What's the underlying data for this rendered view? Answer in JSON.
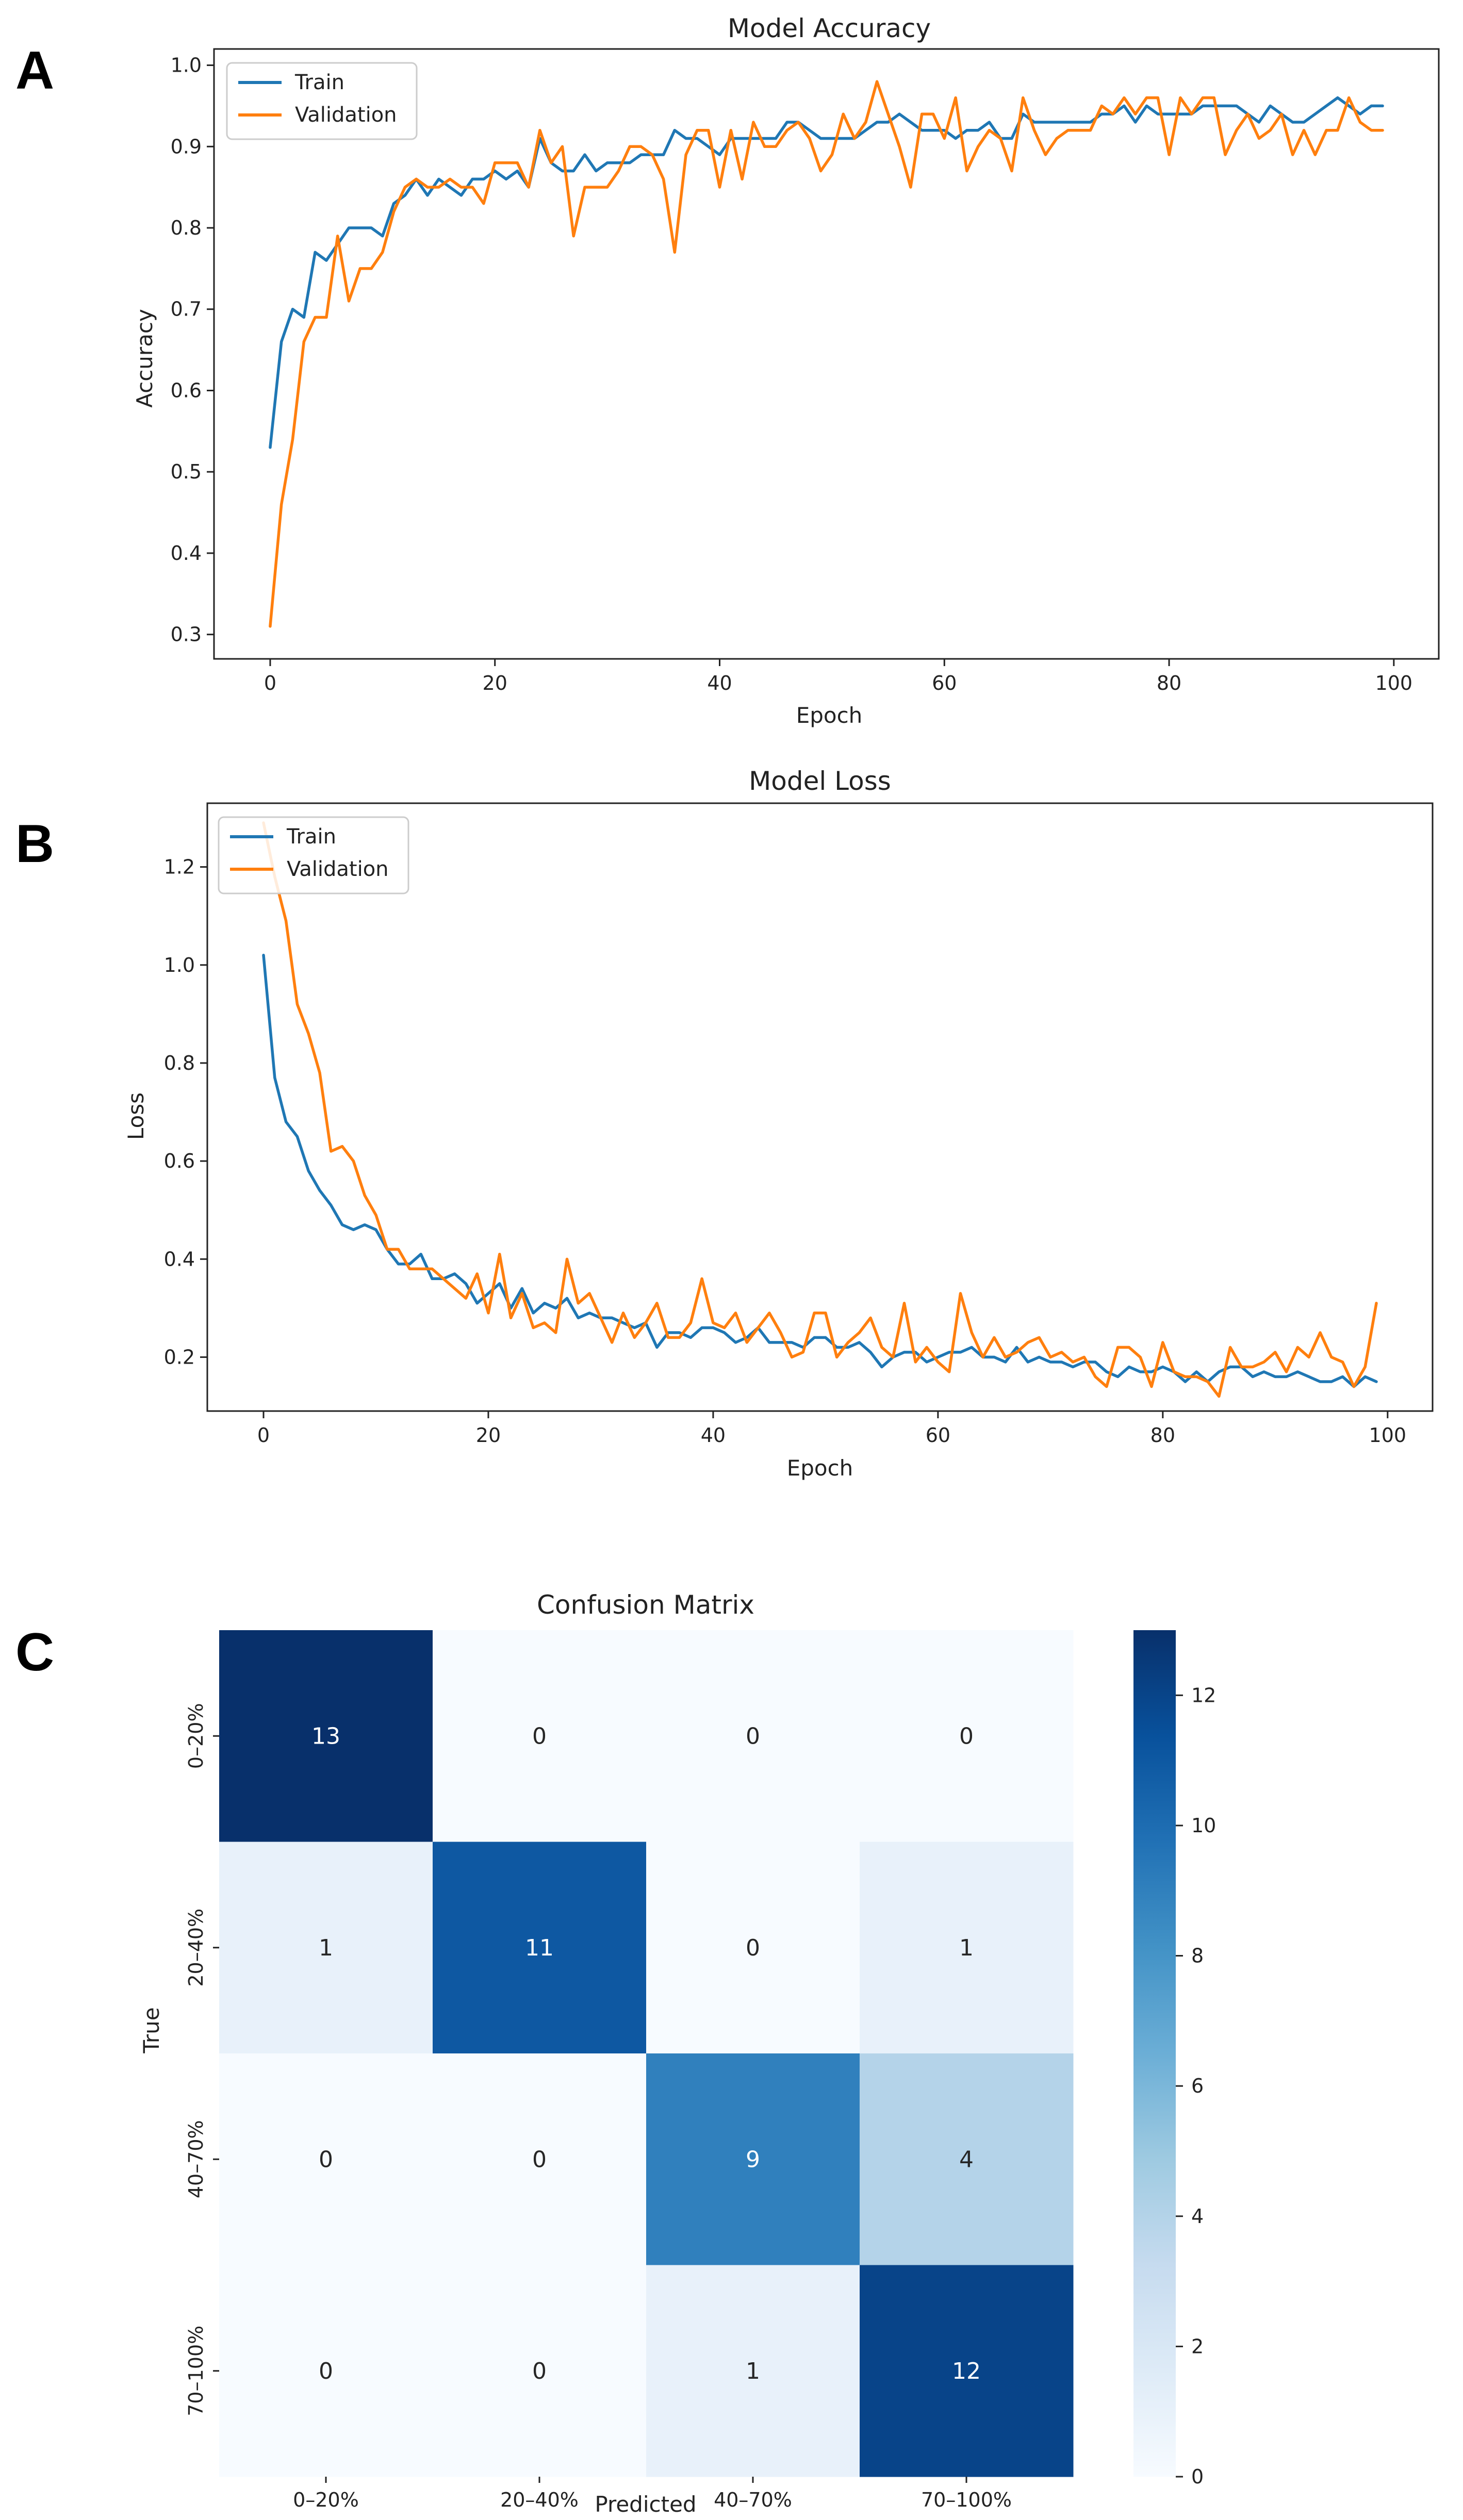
{
  "panel_letters": [
    "A",
    "B",
    "C"
  ],
  "colors": {
    "train": "#1f77b4",
    "validation": "#ff7f0e"
  },
  "chart_data": [
    {
      "type": "line",
      "panel": "A",
      "title": "Model Accuracy",
      "xlabel": "Epoch",
      "ylabel": "Accuracy",
      "xlim": [
        -5,
        104
      ],
      "ylim": [
        0.27,
        1.02
      ],
      "xticks": [
        0,
        20,
        40,
        60,
        80,
        100
      ],
      "xtick_labels": [
        "0",
        "20",
        "40",
        "60",
        "80",
        "100"
      ],
      "yticks": [
        0.3,
        0.4,
        0.5,
        0.6,
        0.7,
        0.8,
        0.9,
        1.0
      ],
      "ytick_labels": [
        "0.3",
        "0.4",
        "0.5",
        "0.6",
        "0.7",
        "0.8",
        "0.9",
        "1.0"
      ],
      "legend_position": "upper left",
      "series": [
        {
          "name": "Train",
          "color": "#1f77b4",
          "values": [
            0.53,
            0.66,
            0.7,
            0.69,
            0.77,
            0.76,
            0.78,
            0.8,
            0.8,
            0.8,
            0.79,
            0.83,
            0.84,
            0.86,
            0.84,
            0.86,
            0.85,
            0.84,
            0.86,
            0.86,
            0.87,
            0.86,
            0.87,
            0.85,
            0.91,
            0.88,
            0.87,
            0.87,
            0.89,
            0.87,
            0.88,
            0.88,
            0.88,
            0.89,
            0.89,
            0.89,
            0.92,
            0.91,
            0.91,
            0.9,
            0.89,
            0.91,
            0.91,
            0.91,
            0.91,
            0.91,
            0.93,
            0.93,
            0.92,
            0.91,
            0.91,
            0.91,
            0.91,
            0.92,
            0.93,
            0.93,
            0.94,
            0.93,
            0.92,
            0.92,
            0.92,
            0.91,
            0.92,
            0.92,
            0.93,
            0.91,
            0.91,
            0.94,
            0.93,
            0.93,
            0.93,
            0.93,
            0.93,
            0.93,
            0.94,
            0.94,
            0.95,
            0.93,
            0.95,
            0.94,
            0.94,
            0.94,
            0.94,
            0.95,
            0.95,
            0.95,
            0.95,
            0.94,
            0.93,
            0.95,
            0.94,
            0.93,
            0.93,
            0.94,
            0.95,
            0.96,
            0.95,
            0.94,
            0.95,
            0.95
          ]
        },
        {
          "name": "Validation",
          "color": "#ff7f0e",
          "values": [
            0.31,
            0.46,
            0.54,
            0.66,
            0.69,
            0.69,
            0.79,
            0.71,
            0.75,
            0.75,
            0.77,
            0.82,
            0.85,
            0.86,
            0.85,
            0.85,
            0.86,
            0.85,
            0.85,
            0.83,
            0.88,
            0.88,
            0.88,
            0.85,
            0.92,
            0.88,
            0.9,
            0.79,
            0.85,
            0.85,
            0.85,
            0.87,
            0.9,
            0.9,
            0.89,
            0.86,
            0.77,
            0.89,
            0.92,
            0.92,
            0.85,
            0.92,
            0.86,
            0.93,
            0.9,
            0.9,
            0.92,
            0.93,
            0.91,
            0.87,
            0.89,
            0.94,
            0.91,
            0.93,
            0.98,
            0.94,
            0.9,
            0.85,
            0.94,
            0.94,
            0.91,
            0.96,
            0.87,
            0.9,
            0.92,
            0.91,
            0.87,
            0.96,
            0.92,
            0.89,
            0.91,
            0.92,
            0.92,
            0.92,
            0.95,
            0.94,
            0.96,
            0.94,
            0.96,
            0.96,
            0.89,
            0.96,
            0.94,
            0.96,
            0.96,
            0.89,
            0.92,
            0.94,
            0.91,
            0.92,
            0.94,
            0.89,
            0.92,
            0.89,
            0.92,
            0.92,
            0.96,
            0.93,
            0.92,
            0.92
          ]
        }
      ]
    },
    {
      "type": "line",
      "panel": "B",
      "title": "Model Loss",
      "xlabel": "Epoch",
      "ylabel": "Loss",
      "xlim": [
        -5,
        104
      ],
      "ylim": [
        0.09,
        1.33
      ],
      "xticks": [
        0,
        20,
        40,
        60,
        80,
        100
      ],
      "xtick_labels": [
        "0",
        "20",
        "40",
        "60",
        "80",
        "100"
      ],
      "yticks": [
        0.2,
        0.4,
        0.6,
        0.8,
        1.0,
        1.2
      ],
      "ytick_labels": [
        "0.2",
        "0.4",
        "0.6",
        "0.8",
        "1.0",
        "1.2"
      ],
      "legend_position": "upper left",
      "series": [
        {
          "name": "Train",
          "color": "#1f77b4",
          "values": [
            1.02,
            0.77,
            0.68,
            0.65,
            0.58,
            0.54,
            0.51,
            0.47,
            0.46,
            0.47,
            0.46,
            0.42,
            0.39,
            0.39,
            0.41,
            0.36,
            0.36,
            0.37,
            0.35,
            0.31,
            0.33,
            0.35,
            0.3,
            0.34,
            0.29,
            0.31,
            0.3,
            0.32,
            0.28,
            0.29,
            0.28,
            0.28,
            0.27,
            0.26,
            0.27,
            0.22,
            0.25,
            0.25,
            0.24,
            0.26,
            0.26,
            0.25,
            0.23,
            0.24,
            0.26,
            0.23,
            0.23,
            0.23,
            0.22,
            0.24,
            0.24,
            0.22,
            0.22,
            0.23,
            0.21,
            0.18,
            0.2,
            0.21,
            0.21,
            0.19,
            0.2,
            0.21,
            0.21,
            0.22,
            0.2,
            0.2,
            0.19,
            0.22,
            0.19,
            0.2,
            0.19,
            0.19,
            0.18,
            0.19,
            0.19,
            0.17,
            0.16,
            0.18,
            0.17,
            0.17,
            0.18,
            0.17,
            0.15,
            0.17,
            0.15,
            0.17,
            0.18,
            0.18,
            0.16,
            0.17,
            0.16,
            0.16,
            0.17,
            0.16,
            0.15,
            0.15,
            0.16,
            0.14,
            0.16,
            0.15
          ]
        },
        {
          "name": "Validation",
          "color": "#ff7f0e",
          "values": [
            1.29,
            1.18,
            1.09,
            0.92,
            0.86,
            0.78,
            0.62,
            0.63,
            0.6,
            0.53,
            0.49,
            0.42,
            0.42,
            0.38,
            0.38,
            0.38,
            0.36,
            0.34,
            0.32,
            0.37,
            0.29,
            0.41,
            0.28,
            0.33,
            0.26,
            0.27,
            0.25,
            0.4,
            0.31,
            0.33,
            0.28,
            0.23,
            0.29,
            0.24,
            0.27,
            0.31,
            0.24,
            0.24,
            0.27,
            0.36,
            0.27,
            0.26,
            0.29,
            0.23,
            0.26,
            0.29,
            0.25,
            0.2,
            0.21,
            0.29,
            0.29,
            0.2,
            0.23,
            0.25,
            0.28,
            0.22,
            0.2,
            0.31,
            0.19,
            0.22,
            0.19,
            0.17,
            0.33,
            0.25,
            0.2,
            0.24,
            0.2,
            0.21,
            0.23,
            0.24,
            0.2,
            0.21,
            0.19,
            0.2,
            0.16,
            0.14,
            0.22,
            0.22,
            0.2,
            0.14,
            0.23,
            0.17,
            0.16,
            0.16,
            0.15,
            0.12,
            0.22,
            0.18,
            0.18,
            0.19,
            0.21,
            0.17,
            0.22,
            0.2,
            0.25,
            0.2,
            0.19,
            0.14,
            0.18,
            0.31
          ]
        }
      ]
    },
    {
      "type": "heatmap",
      "panel": "C",
      "title": "Confusion Matrix",
      "xlabel": "Predicted",
      "ylabel": "True",
      "x_categories": [
        "0–20%",
        "20–40%",
        "40–70%",
        "70–100%"
      ],
      "y_categories": [
        "0–20%",
        "20–40%",
        "40–70%",
        "70–100%"
      ],
      "values": [
        [
          13,
          0,
          0,
          0
        ],
        [
          1,
          11,
          0,
          1
        ],
        [
          0,
          0,
          9,
          4
        ],
        [
          0,
          0,
          1,
          12
        ]
      ],
      "colormap": "Blues",
      "vmin": 0,
      "vmax": 13,
      "colorbar_ticks": [
        0,
        2,
        4,
        6,
        8,
        10,
        12
      ],
      "colorbar_tick_labels": [
        "0",
        "2",
        "4",
        "6",
        "8",
        "10",
        "12"
      ]
    }
  ]
}
